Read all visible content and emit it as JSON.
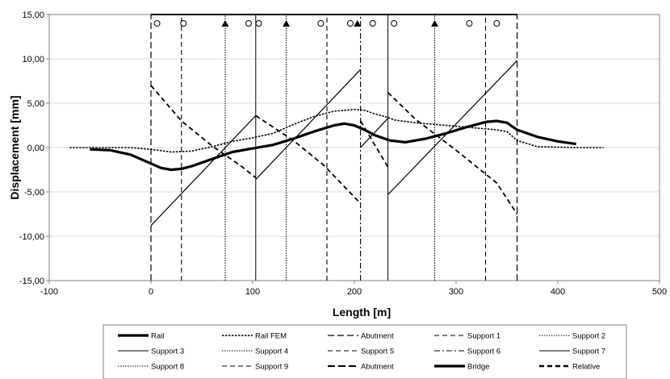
{
  "chart_data": {
    "type": "line",
    "xlabel": "Length [m]",
    "ylabel": "Displacement [mm]",
    "xlim": [
      -100,
      500
    ],
    "ylim": [
      -15,
      15
    ],
    "xticks": [
      -100,
      0,
      100,
      200,
      300,
      400,
      500
    ],
    "xtick_labels": [
      "-100",
      "0",
      "100",
      "200",
      "300",
      "400",
      "500"
    ],
    "yticks": [
      -15,
      -10,
      -5,
      0,
      5,
      10,
      15
    ],
    "ytick_labels": [
      "-15,00",
      "-10,00",
      "-5,00",
      "0,00",
      "5,00",
      "10,00",
      "15,00"
    ],
    "grid": "horizontal",
    "legend_position": "bottom",
    "legend": [
      "Rail",
      "Rail FEM",
      "Abutment",
      "Support 1",
      "Support 2",
      "Support 3",
      "Support 4",
      "Support 5",
      "Support 6",
      "Support 7",
      "Support 8",
      "Support 9",
      "Abutment",
      "Bridge",
      "Relative"
    ],
    "series": [
      {
        "name": "Rail",
        "style": "thick-solid",
        "x": [
          -60,
          -40,
          -20,
          0,
          10,
          20,
          30,
          40,
          60,
          80,
          100,
          120,
          140,
          160,
          180,
          190,
          200,
          210,
          220,
          235,
          250,
          270,
          290,
          310,
          330,
          340,
          350,
          360,
          380,
          400,
          418
        ],
        "y": [
          -0.2,
          -0.3,
          -0.8,
          -1.8,
          -2.3,
          -2.5,
          -2.4,
          -2.1,
          -1.3,
          -0.5,
          -0.1,
          0.3,
          1.0,
          1.8,
          2.5,
          2.7,
          2.5,
          2.0,
          1.4,
          0.8,
          0.6,
          1.0,
          1.6,
          2.3,
          2.9,
          3.0,
          2.8,
          2.0,
          1.2,
          0.7,
          0.4
        ]
      },
      {
        "name": "Rail FEM",
        "style": "dotted",
        "x": [
          -80,
          -40,
          -20,
          0,
          20,
          40,
          60,
          80,
          100,
          120,
          140,
          160,
          180,
          200,
          210,
          220,
          230,
          240,
          260,
          280,
          300,
          320,
          340,
          350,
          360,
          380,
          420,
          445
        ],
        "y": [
          0.0,
          0.0,
          0.0,
          -0.2,
          -0.5,
          -0.4,
          0.1,
          0.7,
          1.1,
          1.6,
          2.6,
          3.5,
          4.1,
          4.3,
          4.2,
          3.8,
          3.5,
          3.1,
          2.8,
          2.6,
          2.4,
          2.2,
          2.0,
          1.8,
          0.8,
          0.1,
          0.0,
          0.0
        ]
      },
      {
        "name": "Abutment",
        "style": "long-dash",
        "x": [
          0,
          0
        ],
        "y": [
          -15,
          15
        ]
      },
      {
        "name": "Support 1",
        "style": "dash",
        "x": [
          30,
          30
        ],
        "y": [
          -15,
          15
        ]
      },
      {
        "name": "Support 2",
        "style": "fine-dot",
        "x": [
          73,
          73
        ],
        "y": [
          -15,
          15
        ]
      },
      {
        "name": "Support 3",
        "style": "thin-solid",
        "x": [
          103,
          103
        ],
        "y": [
          -15,
          15
        ]
      },
      {
        "name": "Support 4",
        "style": "fine-dot",
        "x": [
          133,
          133
        ],
        "y": [
          -15,
          15
        ]
      },
      {
        "name": "Support 5",
        "style": "dash",
        "x": [
          173,
          173
        ],
        "y": [
          -15,
          15
        ]
      },
      {
        "name": "Support 6",
        "style": "dash-dot",
        "x": [
          206,
          206
        ],
        "y": [
          -15,
          15
        ]
      },
      {
        "name": "Support 7",
        "style": "thin-solid",
        "x": [
          233,
          233
        ],
        "y": [
          -15,
          15
        ]
      },
      {
        "name": "Support 8",
        "style": "fine-dot",
        "x": [
          279,
          279
        ],
        "y": [
          -15,
          15
        ]
      },
      {
        "name": "Support 9",
        "style": "dash",
        "x": [
          329,
          329
        ],
        "y": [
          -15,
          15
        ]
      },
      {
        "name": "Abutment",
        "style": "long-dash",
        "x": [
          360,
          360
        ],
        "y": [
          -15,
          15
        ]
      },
      {
        "name": "Bridge",
        "style": "thin-solid-segments",
        "segments": [
          {
            "x": [
              0,
              103
            ],
            "y": [
              -8.8,
              3.6
            ]
          },
          {
            "x": [
              103,
              206
            ],
            "y": [
              -3.6,
              8.8
            ]
          },
          {
            "x": [
              206,
              233
            ],
            "y": [
              0.0,
              3.3
            ]
          },
          {
            "x": [
              233,
              360
            ],
            "y": [
              -5.3,
              9.8
            ]
          }
        ]
      },
      {
        "name": "Relative",
        "style": "thick-dash-segments",
        "segments": [
          {
            "x": [
              0,
              30,
              60,
              90,
              103
            ],
            "y": [
              7.0,
              3.0,
              0.2,
              -2.2,
              -3.4
            ]
          },
          {
            "x": [
              103,
              140,
              170,
              206
            ],
            "y": [
              3.6,
              0.8,
              -2.0,
              -6.3
            ]
          },
          {
            "x": [
              206,
              233
            ],
            "y": [
              3.0,
              -2.2
            ]
          },
          {
            "x": [
              233,
              260,
              300,
              340,
              360
            ],
            "y": [
              6.2,
              3.2,
              -0.3,
              -4.0,
              -7.5
            ]
          }
        ]
      }
    ],
    "bearings": {
      "deck_y": 15.0,
      "symbol_y": 14.0,
      "circles": [
        6,
        32,
        96,
        106,
        167,
        196,
        218,
        239,
        313,
        340
      ],
      "triangles": [
        73,
        133,
        203,
        279
      ]
    }
  }
}
